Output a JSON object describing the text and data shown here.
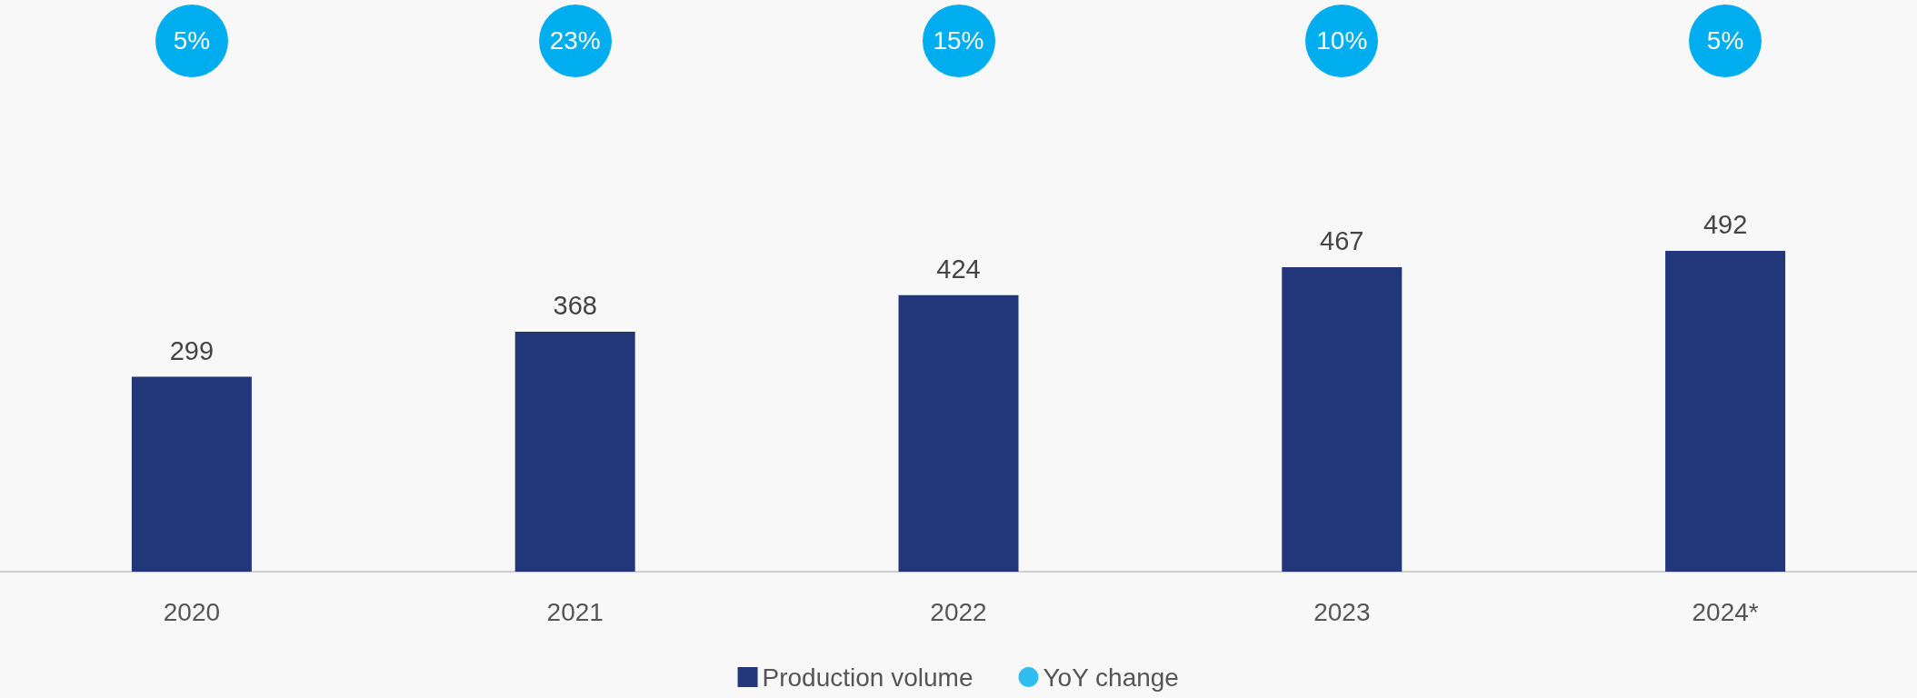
{
  "chart_data": {
    "type": "bar",
    "categories": [
      "2020",
      "2021",
      "2022",
      "2023",
      "2024*"
    ],
    "series": [
      {
        "name": "Production volume",
        "color": "#21377a",
        "values": [
          299,
          368,
          424,
          467,
          492
        ]
      },
      {
        "type": "scatter",
        "name": "YoY change",
        "color": "#00aeef",
        "values": [
          null,
          null,
          null,
          null,
          null
        ]
      }
    ],
    "annotations": [
      "5%",
      "23%",
      "15%",
      "10%",
      "5%"
    ],
    "data_labels": true,
    "legend": "bottom"
  }
}
